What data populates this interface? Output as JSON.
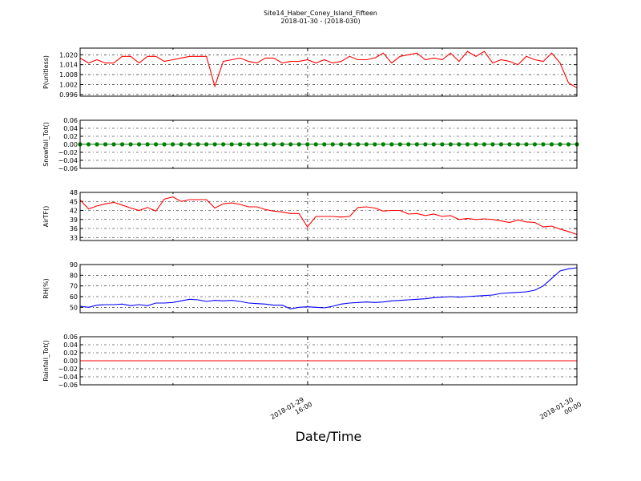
{
  "title": "Site14_Haber_Coney_Island_Fifteen",
  "subtitle": "2018-01-30 - (2018-030)",
  "xlabel": "Date/Time",
  "x_ticks": [
    {
      "label_line1": "2018-01-29",
      "label_line2": "16:00",
      "pos": 0.458
    },
    {
      "label_line1": "2018-01-30",
      "label_line2": "00:00",
      "pos": 1.0
    }
  ],
  "chart_data": [
    {
      "type": "line",
      "ylabel": "P(unitless)",
      "ylim": [
        0.995,
        1.024
      ],
      "yticks": [
        1.02,
        1.014,
        1.008,
        1.002,
        0.996
      ],
      "ytick_labels": [
        "1.020",
        "1.014",
        "1.008",
        "1.002",
        "0.996"
      ],
      "grid": true,
      "series": [
        {
          "color": "#ff0000",
          "markers": false,
          "values": [
            1.018,
            1.015,
            1.017,
            1.015,
            1.015,
            1.019,
            1.019,
            1.015,
            1.019,
            1.019,
            1.016,
            1.017,
            1.018,
            1.019,
            1.019,
            1.019,
            1.001,
            1.016,
            1.017,
            1.018,
            1.016,
            1.015,
            1.018,
            1.018,
            1.015,
            1.016,
            1.016,
            1.017,
            1.015,
            1.017,
            1.015,
            1.016,
            1.019,
            1.017,
            1.017,
            1.018,
            1.021,
            1.015,
            1.019,
            1.02,
            1.021,
            1.017,
            1.018,
            1.017,
            1.021,
            1.016,
            1.022,
            1.019,
            1.022,
            1.015,
            1.017,
            1.016,
            1.014,
            1.019,
            1.017,
            1.016,
            1.021,
            1.015,
            1.003,
            1.0
          ]
        }
      ]
    },
    {
      "type": "line",
      "ylabel": "Snowfall_Tot()",
      "ylim": [
        -0.06,
        0.06
      ],
      "yticks": [
        0.06,
        0.04,
        0.02,
        0.0,
        -0.02,
        -0.04,
        -0.06
      ],
      "ytick_labels": [
        "0.06",
        "0.04",
        "0.02",
        "0.00",
        "−0.02",
        "−0.04",
        "−0.06"
      ],
      "grid": true,
      "series": [
        {
          "color": "#008000",
          "markers": true,
          "constant": 0.0,
          "count": 60
        }
      ]
    },
    {
      "type": "line",
      "ylabel": "AirTF()",
      "ylim": [
        32,
        48
      ],
      "yticks": [
        48,
        45,
        42,
        39,
        36,
        33
      ],
      "ytick_labels": [
        "48",
        "45",
        "42",
        "39",
        "36",
        "33"
      ],
      "grid": true,
      "series": [
        {
          "color": "#ff0000",
          "markers": false,
          "values": [
            45.5,
            42.5,
            43.5,
            44.2,
            44.7,
            43.8,
            42.8,
            42.0,
            43.0,
            41.8,
            45.8,
            46.5,
            45.0,
            45.6,
            45.6,
            45.6,
            42.8,
            44.2,
            44.5,
            44.0,
            43.2,
            43.2,
            42.3,
            41.8,
            41.5,
            41.0,
            41.0,
            36.5,
            40.0,
            40.0,
            40.0,
            39.8,
            40.0,
            43.0,
            43.2,
            42.8,
            41.8,
            42.0,
            42.0,
            40.8,
            41.0,
            40.3,
            40.8,
            40.0,
            40.3,
            39.0,
            39.3,
            39.0,
            39.2,
            39.0,
            38.5,
            38.0,
            38.8,
            38.2,
            38.0,
            36.5,
            36.8,
            35.8,
            35.0,
            34.0
          ]
        }
      ]
    },
    {
      "type": "line",
      "ylabel": "RH(%)",
      "ylim": [
        45,
        90
      ],
      "yticks": [
        90,
        80,
        70,
        60,
        50
      ],
      "ytick_labels": [
        "90",
        "80",
        "70",
        "60",
        "50"
      ],
      "grid": true,
      "series": [
        {
          "color": "#0000ff",
          "markers": false,
          "values": [
            51,
            50,
            52,
            52.5,
            52.5,
            53,
            51.5,
            52.5,
            51.5,
            54,
            54,
            54.5,
            56,
            57.5,
            57,
            55.5,
            56.5,
            56,
            56.5,
            55.5,
            54,
            53.5,
            53,
            52,
            52,
            48.5,
            50,
            50.5,
            50,
            49.5,
            51,
            53,
            54,
            54.5,
            55,
            54.5,
            55,
            56,
            56.5,
            57,
            57.5,
            58,
            59,
            59.5,
            60,
            59.5,
            60,
            60.5,
            61,
            61.5,
            63,
            63.5,
            64,
            64.5,
            66,
            70,
            77,
            84,
            86,
            87
          ]
        }
      ]
    },
    {
      "type": "line",
      "ylabel": "Rainfall_Tot()",
      "ylim": [
        -0.06,
        0.06
      ],
      "yticks": [
        0.06,
        0.04,
        0.02,
        0.0,
        -0.02,
        -0.04,
        -0.06
      ],
      "ytick_labels": [
        "0.06",
        "0.04",
        "0.02",
        "0.00",
        "−0.02",
        "−0.04",
        "−0.06"
      ],
      "grid": true,
      "series": [
        {
          "color": "#ff0000",
          "markers": false,
          "constant": 0.0,
          "count": 60
        }
      ]
    }
  ]
}
